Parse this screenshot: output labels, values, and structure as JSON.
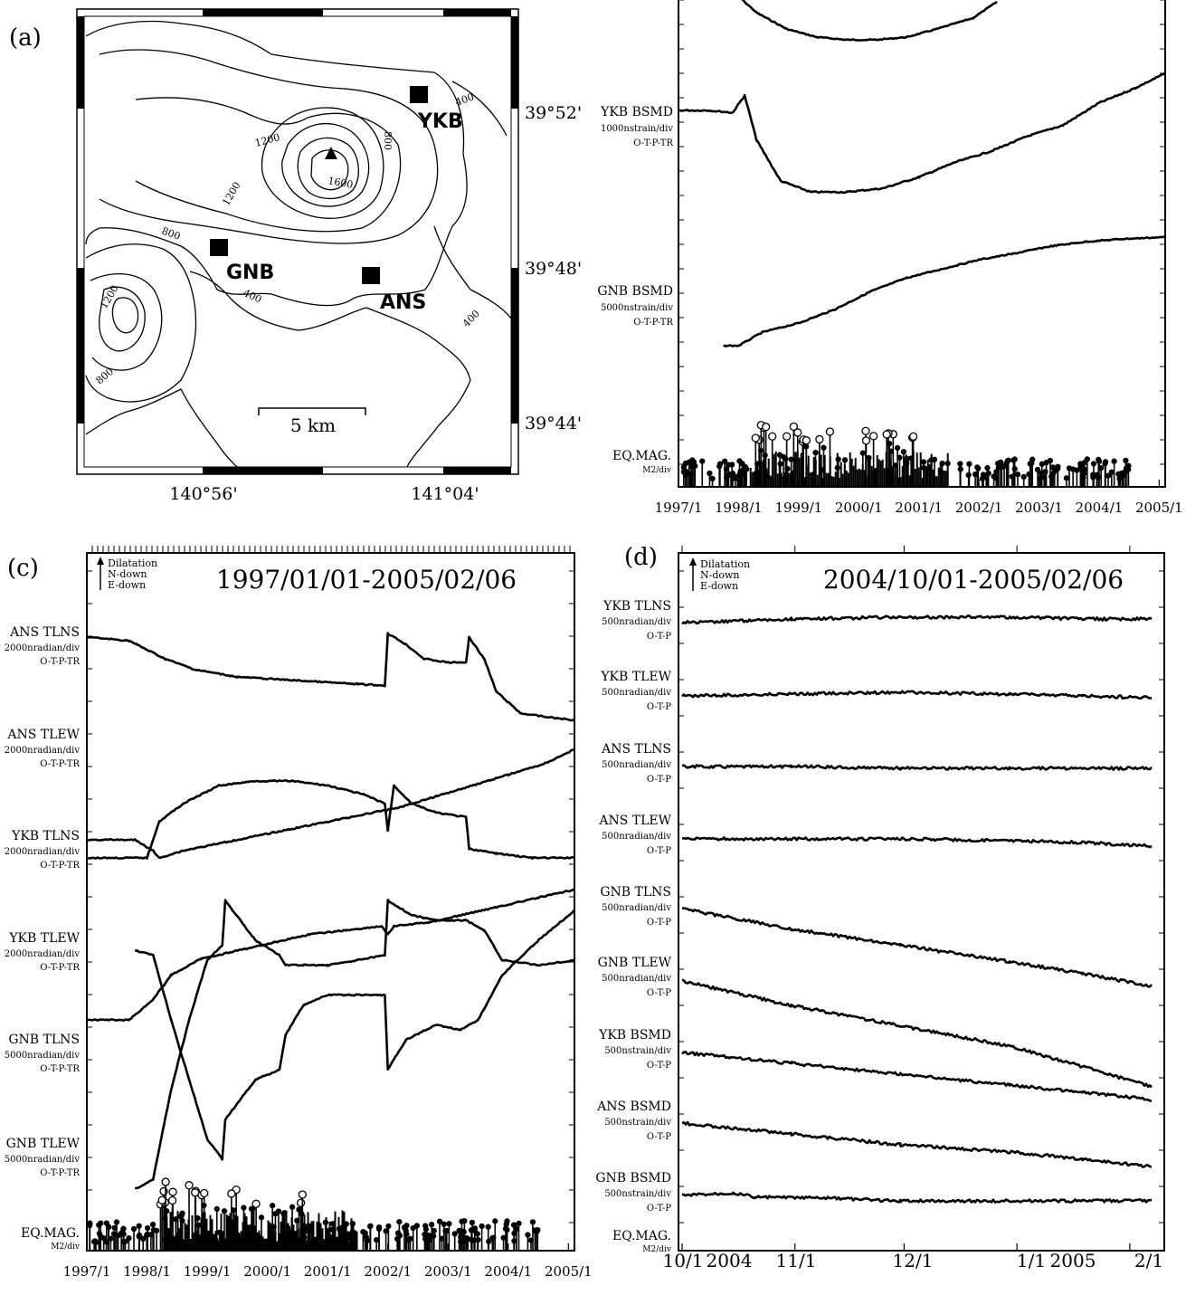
{
  "panels": {
    "a": {
      "label": "(a)",
      "lat_labels": [
        "39°52'",
        "39°48'",
        "39°44'"
      ],
      "lon_labels": [
        "140°56'",
        "141°04'"
      ],
      "stations": [
        "YKB",
        "GNB",
        "ANS"
      ],
      "contour_labels": [
        "400",
        "800",
        "1200",
        "1600",
        "1200",
        "800",
        "800",
        "1200",
        "400",
        "400",
        "800",
        "400"
      ],
      "scale_label": "5 km"
    },
    "b": {
      "x_ticks": [
        "1997/1",
        "1998/1",
        "1999/1",
        "2000/1",
        "2001/1",
        "2002/1",
        "2003/1",
        "2004/1",
        "2005/1"
      ],
      "channels": [
        {
          "name": "YKB BSMD",
          "scale": "1000nstrain/div",
          "corr": "O-T-P-TR"
        },
        {
          "name": "GNB BSMD",
          "scale": "5000nstrain/div",
          "corr": "O-T-P-TR"
        },
        {
          "name": "EQ.MAG.",
          "scale": "M2/div",
          "corr": ""
        }
      ]
    },
    "c": {
      "label": "(c)",
      "title": "1997/01/01-2005/02/06",
      "legend": [
        "Dilatation",
        "N-down",
        "E-down"
      ],
      "x_ticks": [
        "1997/1",
        "1998/1",
        "1999/1",
        "2000/1",
        "2001/1",
        "2002/1",
        "2003/1",
        "2004/1",
        "2005/1"
      ],
      "channels": [
        {
          "name": "ANS TLNS",
          "scale": "2000nradian/div",
          "corr": "O-T-P-TR"
        },
        {
          "name": "ANS TLEW",
          "scale": "2000nradian/div",
          "corr": "O-T-P-TR"
        },
        {
          "name": "YKB TLNS",
          "scale": "2000nradian/div",
          "corr": "O-T-P-TR"
        },
        {
          "name": "YKB TLEW",
          "scale": "2000nradian/div",
          "corr": "O-T-P-TR"
        },
        {
          "name": "GNB TLNS",
          "scale": "5000nradian/div",
          "corr": "O-T-P-TR"
        },
        {
          "name": "GNB TLEW",
          "scale": "5000nradian/div",
          "corr": "O-T-P-TR"
        },
        {
          "name": "EQ.MAG.",
          "scale": "M2/div",
          "corr": ""
        }
      ]
    },
    "d": {
      "label": "(d)",
      "title": "2004/10/01-2005/02/06",
      "legend": [
        "Dilatation",
        "N-down",
        "E-down"
      ],
      "x_ticks": [
        "10/1",
        "11/1",
        "12/1",
        "1/1",
        "2/1"
      ],
      "year_labels": [
        "2004",
        "2005"
      ],
      "channels": [
        {
          "name": "YKB TLNS",
          "scale": "500nradian/div",
          "corr": "O-T-P"
        },
        {
          "name": "YKB TLEW",
          "scale": "500nradian/div",
          "corr": "O-T-P"
        },
        {
          "name": "ANS TLNS",
          "scale": "500nradian/div",
          "corr": "O-T-P"
        },
        {
          "name": "ANS TLEW",
          "scale": "500nradian/div",
          "corr": "O-T-P"
        },
        {
          "name": "GNB TLNS",
          "scale": "500nradian/div",
          "corr": "O-T-P"
        },
        {
          "name": "GNB TLEW",
          "scale": "500nradian/div",
          "corr": "O-T-P"
        },
        {
          "name": "YKB BSMD",
          "scale": "500nstrain/div",
          "corr": "O-T-P"
        },
        {
          "name": "ANS BSMD",
          "scale": "500nstrain/div",
          "corr": "O-T-P"
        },
        {
          "name": "GNB BSMD",
          "scale": "500nstrain/div",
          "corr": "O-T-P"
        },
        {
          "name": "EQ.MAG.",
          "scale": "M2/div",
          "corr": ""
        }
      ]
    }
  },
  "chart_data": [
    {
      "type": "line",
      "panel": "b",
      "x_unit": "year",
      "xlim": [
        1997.0,
        2005.1
      ],
      "series": [
        {
          "name": "YKB BSMD",
          "x": [
            1997.0,
            1997.5,
            1997.9,
            1998.1,
            1998.3,
            1998.7,
            1999.2,
            1999.8,
            2000.4,
            2001.0,
            2001.6,
            2002.2,
            2002.8,
            2003.4,
            2004.0,
            2004.6,
            2005.1
          ],
          "y": [
            0.0,
            0.0,
            -0.03,
            0.2,
            -0.4,
            -0.95,
            -1.1,
            -1.1,
            -1.05,
            -0.9,
            -0.7,
            -0.55,
            -0.35,
            -0.2,
            0.1,
            0.3,
            0.5
          ]
        },
        {
          "name": "GNB BSMD",
          "x": [
            1997.75,
            1998.0,
            1998.4,
            1999.0,
            1999.6,
            2000.2,
            2000.8,
            2001.4,
            2002.0,
            2002.6,
            2003.2,
            2003.8,
            2004.4,
            2005.1
          ],
          "y": [
            -0.6,
            -0.6,
            -0.45,
            -0.35,
            -0.2,
            0.0,
            0.15,
            0.25,
            0.35,
            0.42,
            0.5,
            0.55,
            0.58,
            0.6
          ]
        }
      ]
    },
    {
      "type": "line",
      "panel": "c",
      "x_unit": "year",
      "xlim": [
        1997.0,
        2005.1
      ],
      "series": [
        {
          "name": "ANS TLNS",
          "x": [
            1997.0,
            1997.7,
            1998.3,
            1998.8,
            1999.5,
            2000.5,
            2001.5,
            2001.95,
            2002.0,
            2002.1,
            2002.3,
            2002.6,
            2003.0,
            2003.3,
            2003.35,
            2003.6,
            2003.8,
            2004.2,
            2004.6,
            2005.1
          ],
          "y": [
            0.0,
            -0.05,
            -0.3,
            -0.45,
            -0.55,
            -0.6,
            -0.65,
            -0.67,
            0.05,
            0.0,
            -0.1,
            -0.3,
            -0.35,
            -0.35,
            0.0,
            -0.3,
            -0.75,
            -1.05,
            -1.1,
            -1.15
          ]
        },
        {
          "name": "ANS TLEW",
          "x": [
            1997.0,
            1998.0,
            1998.2,
            1998.6,
            1999.2,
            1999.8,
            2000.4,
            2001.0,
            2001.6,
            2001.95,
            2002.0,
            2002.1,
            2002.4,
            2002.8,
            2003.3,
            2003.35,
            2003.8,
            2004.4,
            2005.1
          ],
          "y": [
            -0.9,
            -0.9,
            -0.5,
            -0.3,
            -0.1,
            -0.05,
            -0.05,
            -0.1,
            -0.2,
            -0.3,
            -0.6,
            -0.1,
            -0.3,
            -0.4,
            -0.45,
            -0.8,
            -0.85,
            -0.9,
            -0.9
          ]
        },
        {
          "name": "YKB TLNS",
          "x": [
            1997.0,
            1997.8,
            1998.1,
            1998.2,
            1998.6,
            1999.2,
            1999.8,
            2000.4,
            2001.0,
            2001.6,
            2002.2,
            2002.8,
            2003.4,
            2004.0,
            2004.6,
            2005.1
          ],
          "y": [
            0.0,
            0.0,
            -0.15,
            -0.25,
            -0.15,
            -0.05,
            0.05,
            0.15,
            0.25,
            0.35,
            0.45,
            0.6,
            0.75,
            0.9,
            1.05,
            1.25
          ]
        },
        {
          "name": "YKB TLEW",
          "x": [
            1997.0,
            1997.7,
            1998.1,
            1998.4,
            1998.9,
            1999.5,
            2000.1,
            2000.7,
            2001.3,
            2001.9,
            2002.0,
            2002.1,
            2002.7,
            2003.3,
            2003.9,
            2004.5,
            2005.1
          ],
          "y": [
            -0.5,
            -0.5,
            -0.25,
            0.05,
            0.25,
            0.35,
            0.45,
            0.55,
            0.6,
            0.65,
            0.55,
            0.65,
            0.7,
            0.8,
            0.9,
            1.0,
            1.1
          ]
        },
        {
          "name": "GNB TLNS",
          "x": [
            1997.8,
            1998.1,
            1998.4,
            1998.7,
            1999.0,
            1999.25,
            1999.3,
            1999.8,
            2000.2,
            2000.3,
            2000.6,
            2001.0,
            2001.5,
            2001.95,
            2002.0,
            2002.3,
            2002.8,
            2003.2,
            2003.5,
            2003.9,
            2004.5,
            2005.1
          ],
          "y": [
            1.0,
            0.95,
            0.3,
            -0.3,
            -0.9,
            -1.1,
            -0.7,
            -0.3,
            -0.2,
            0.15,
            0.45,
            0.55,
            0.55,
            0.55,
            -0.2,
            0.1,
            0.25,
            0.2,
            0.3,
            0.75,
            1.1,
            1.4
          ]
        },
        {
          "name": "GNB TLEW",
          "x": [
            1997.8,
            1998.1,
            1998.4,
            1998.7,
            1999.0,
            1999.25,
            1999.3,
            1999.8,
            2000.2,
            2000.3,
            2000.6,
            2001.0,
            2001.5,
            2001.95,
            2002.0,
            2002.4,
            2002.8,
            2003.3,
            2003.6,
            2003.9,
            2004.5,
            2005.1
          ],
          "y": [
            -1.4,
            -1.3,
            -0.4,
            0.3,
            0.9,
            1.05,
            1.5,
            1.1,
            0.95,
            0.85,
            0.85,
            0.85,
            0.9,
            0.95,
            1.5,
            1.35,
            1.3,
            1.3,
            1.2,
            0.9,
            0.85,
            0.9
          ]
        }
      ]
    },
    {
      "type": "line",
      "panel": "d",
      "x_unit": "day since 2004-10-01",
      "xlim": [
        0,
        129
      ],
      "series": [
        {
          "name": "YKB TLNS",
          "x": [
            0,
            30,
            60,
            90,
            110,
            129
          ],
          "y": [
            0.0,
            0.1,
            0.15,
            0.15,
            0.1,
            0.1
          ]
        },
        {
          "name": "YKB TLEW",
          "x": [
            0,
            30,
            60,
            90,
            110,
            129
          ],
          "y": [
            0.0,
            0.05,
            0.1,
            0.05,
            0.0,
            -0.05
          ]
        },
        {
          "name": "ANS TLNS",
          "x": [
            0,
            30,
            60,
            90,
            110,
            129
          ],
          "y": [
            0.0,
            0.0,
            -0.05,
            -0.05,
            -0.05,
            -0.05
          ]
        },
        {
          "name": "ANS TLEW",
          "x": [
            0,
            30,
            60,
            90,
            110,
            129
          ],
          "y": [
            0.0,
            0.0,
            0.0,
            -0.05,
            -0.1,
            -0.2
          ]
        },
        {
          "name": "GNB TLNS",
          "x": [
            0,
            30,
            60,
            90,
            110,
            129
          ],
          "y": [
            0.0,
            -0.25,
            -0.45,
            -0.65,
            -0.8,
            -0.95
          ]
        },
        {
          "name": "GNB TLEW",
          "x": [
            0,
            30,
            60,
            90,
            110,
            129
          ],
          "y": [
            0.0,
            -0.3,
            -0.55,
            -0.8,
            -1.05,
            -1.3
          ]
        },
        {
          "name": "YKB BSMD",
          "x": [
            0,
            30,
            60,
            90,
            110,
            129
          ],
          "y": [
            0.0,
            -0.15,
            -0.3,
            -0.45,
            -0.55,
            -0.65
          ]
        },
        {
          "name": "ANS BSMD",
          "x": [
            0,
            30,
            60,
            90,
            110,
            129
          ],
          "y": [
            0.0,
            -0.15,
            -0.3,
            -0.4,
            -0.5,
            -0.6
          ]
        },
        {
          "name": "GNB BSMD",
          "x": [
            0,
            14,
            20,
            40,
            60,
            90,
            110,
            129
          ],
          "y": [
            0.0,
            0.05,
            -0.03,
            -0.05,
            -0.1,
            -0.1,
            -0.1,
            -0.1
          ]
        }
      ]
    }
  ]
}
